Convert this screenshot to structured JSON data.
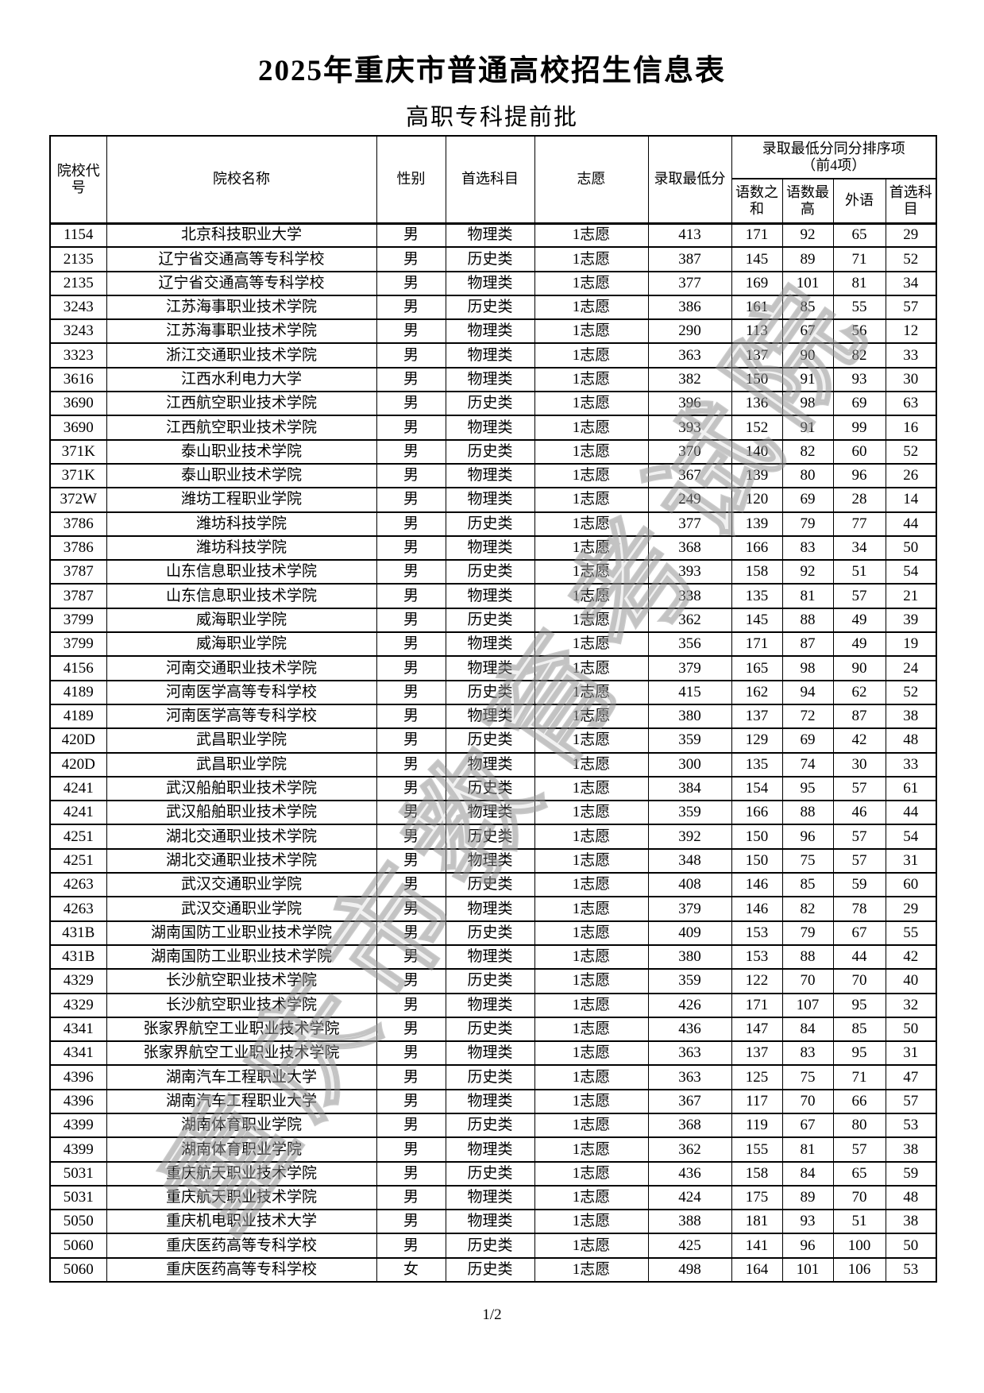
{
  "page": {
    "title": "2025年重庆市普通高校招生信息表",
    "subtitle": "高职专科提前批",
    "page_number": "1/2",
    "watermark": "重庆市教育考试院"
  },
  "table": {
    "column_keys": [
      "code",
      "name",
      "gender",
      "subject",
      "volunteer",
      "min_score",
      "cn-math-sum",
      "cn-math-max",
      "foreign-lang",
      "first-subject"
    ],
    "headers": {
      "code": "院校代号",
      "name": "院校名称",
      "gender": "性别",
      "subject": "首选科目",
      "volunteer": "志愿",
      "min_score": "录取最低分",
      "tie_group": "录取最低分同分排序项\n（前4项）",
      "tie_cols": [
        "语数之和",
        "语数最高",
        "外语",
        "首选科目"
      ]
    },
    "rows": [
      [
        "1154",
        "北京科技职业大学",
        "男",
        "物理类",
        "1志愿",
        "413",
        "171",
        "92",
        "65",
        "29"
      ],
      [
        "2135",
        "辽宁省交通高等专科学校",
        "男",
        "历史类",
        "1志愿",
        "387",
        "145",
        "89",
        "71",
        "52"
      ],
      [
        "2135",
        "辽宁省交通高等专科学校",
        "男",
        "物理类",
        "1志愿",
        "377",
        "169",
        "101",
        "81",
        "34"
      ],
      [
        "3243",
        "江苏海事职业技术学院",
        "男",
        "历史类",
        "1志愿",
        "386",
        "161",
        "85",
        "55",
        "57"
      ],
      [
        "3243",
        "江苏海事职业技术学院",
        "男",
        "物理类",
        "1志愿",
        "290",
        "113",
        "67",
        "56",
        "12"
      ],
      [
        "3323",
        "浙江交通职业技术学院",
        "男",
        "物理类",
        "1志愿",
        "363",
        "137",
        "90",
        "82",
        "33"
      ],
      [
        "3616",
        "江西水利电力大学",
        "男",
        "物理类",
        "1志愿",
        "382",
        "150",
        "91",
        "93",
        "30"
      ],
      [
        "3690",
        "江西航空职业技术学院",
        "男",
        "历史类",
        "1志愿",
        "396",
        "136",
        "98",
        "69",
        "63"
      ],
      [
        "3690",
        "江西航空职业技术学院",
        "男",
        "物理类",
        "1志愿",
        "393",
        "152",
        "91",
        "99",
        "16"
      ],
      [
        "371K",
        "泰山职业技术学院",
        "男",
        "历史类",
        "1志愿",
        "370",
        "140",
        "82",
        "60",
        "52"
      ],
      [
        "371K",
        "泰山职业技术学院",
        "男",
        "物理类",
        "1志愿",
        "367",
        "139",
        "80",
        "96",
        "26"
      ],
      [
        "372W",
        "潍坊工程职业学院",
        "男",
        "物理类",
        "1志愿",
        "249",
        "120",
        "69",
        "28",
        "14"
      ],
      [
        "3786",
        "潍坊科技学院",
        "男",
        "历史类",
        "1志愿",
        "377",
        "139",
        "79",
        "77",
        "44"
      ],
      [
        "3786",
        "潍坊科技学院",
        "男",
        "物理类",
        "1志愿",
        "368",
        "166",
        "83",
        "34",
        "50"
      ],
      [
        "3787",
        "山东信息职业技术学院",
        "男",
        "历史类",
        "1志愿",
        "393",
        "158",
        "92",
        "51",
        "54"
      ],
      [
        "3787",
        "山东信息职业技术学院",
        "男",
        "物理类",
        "1志愿",
        "338",
        "135",
        "81",
        "57",
        "21"
      ],
      [
        "3799",
        "威海职业学院",
        "男",
        "历史类",
        "1志愿",
        "362",
        "145",
        "88",
        "49",
        "39"
      ],
      [
        "3799",
        "威海职业学院",
        "男",
        "物理类",
        "1志愿",
        "356",
        "171",
        "87",
        "49",
        "19"
      ],
      [
        "4156",
        "河南交通职业技术学院",
        "男",
        "物理类",
        "1志愿",
        "379",
        "165",
        "98",
        "90",
        "24"
      ],
      [
        "4189",
        "河南医学高等专科学校",
        "男",
        "历史类",
        "1志愿",
        "415",
        "162",
        "94",
        "62",
        "52"
      ],
      [
        "4189",
        "河南医学高等专科学校",
        "男",
        "物理类",
        "1志愿",
        "380",
        "137",
        "72",
        "87",
        "38"
      ],
      [
        "420D",
        "武昌职业学院",
        "男",
        "历史类",
        "1志愿",
        "359",
        "129",
        "69",
        "42",
        "48"
      ],
      [
        "420D",
        "武昌职业学院",
        "男",
        "物理类",
        "1志愿",
        "300",
        "135",
        "74",
        "30",
        "33"
      ],
      [
        "4241",
        "武汉船舶职业技术学院",
        "男",
        "历史类",
        "1志愿",
        "384",
        "154",
        "95",
        "57",
        "61"
      ],
      [
        "4241",
        "武汉船舶职业技术学院",
        "男",
        "物理类",
        "1志愿",
        "359",
        "166",
        "88",
        "46",
        "44"
      ],
      [
        "4251",
        "湖北交通职业技术学院",
        "男",
        "历史类",
        "1志愿",
        "392",
        "150",
        "96",
        "57",
        "54"
      ],
      [
        "4251",
        "湖北交通职业技术学院",
        "男",
        "物理类",
        "1志愿",
        "348",
        "150",
        "75",
        "57",
        "31"
      ],
      [
        "4263",
        "武汉交通职业学院",
        "男",
        "历史类",
        "1志愿",
        "408",
        "146",
        "85",
        "59",
        "60"
      ],
      [
        "4263",
        "武汉交通职业学院",
        "男",
        "物理类",
        "1志愿",
        "379",
        "146",
        "82",
        "78",
        "29"
      ],
      [
        "431B",
        "湖南国防工业职业技术学院",
        "男",
        "历史类",
        "1志愿",
        "409",
        "153",
        "79",
        "67",
        "55"
      ],
      [
        "431B",
        "湖南国防工业职业技术学院",
        "男",
        "物理类",
        "1志愿",
        "380",
        "153",
        "88",
        "44",
        "42"
      ],
      [
        "4329",
        "长沙航空职业技术学院",
        "男",
        "历史类",
        "1志愿",
        "359",
        "122",
        "70",
        "70",
        "40"
      ],
      [
        "4329",
        "长沙航空职业技术学院",
        "男",
        "物理类",
        "1志愿",
        "426",
        "171",
        "107",
        "95",
        "32"
      ],
      [
        "4341",
        "张家界航空工业职业技术学院",
        "男",
        "历史类",
        "1志愿",
        "436",
        "147",
        "84",
        "85",
        "50"
      ],
      [
        "4341",
        "张家界航空工业职业技术学院",
        "男",
        "物理类",
        "1志愿",
        "363",
        "137",
        "83",
        "95",
        "31"
      ],
      [
        "4396",
        "湖南汽车工程职业大学",
        "男",
        "历史类",
        "1志愿",
        "363",
        "125",
        "75",
        "71",
        "47"
      ],
      [
        "4396",
        "湖南汽车工程职业大学",
        "男",
        "物理类",
        "1志愿",
        "367",
        "117",
        "70",
        "66",
        "57"
      ],
      [
        "4399",
        "湖南体育职业学院",
        "男",
        "历史类",
        "1志愿",
        "368",
        "119",
        "67",
        "80",
        "53"
      ],
      [
        "4399",
        "湖南体育职业学院",
        "男",
        "物理类",
        "1志愿",
        "362",
        "155",
        "81",
        "57",
        "38"
      ],
      [
        "5031",
        "重庆航天职业技术学院",
        "男",
        "历史类",
        "1志愿",
        "436",
        "158",
        "84",
        "65",
        "59"
      ],
      [
        "5031",
        "重庆航天职业技术学院",
        "男",
        "物理类",
        "1志愿",
        "424",
        "175",
        "89",
        "70",
        "48"
      ],
      [
        "5050",
        "重庆机电职业技术大学",
        "男",
        "物理类",
        "1志愿",
        "388",
        "181",
        "93",
        "51",
        "38"
      ],
      [
        "5060",
        "重庆医药高等专科学校",
        "男",
        "历史类",
        "1志愿",
        "425",
        "141",
        "96",
        "100",
        "50"
      ],
      [
        "5060",
        "重庆医药高等专科学校",
        "女",
        "历史类",
        "1志愿",
        "498",
        "164",
        "101",
        "106",
        "53"
      ]
    ]
  }
}
